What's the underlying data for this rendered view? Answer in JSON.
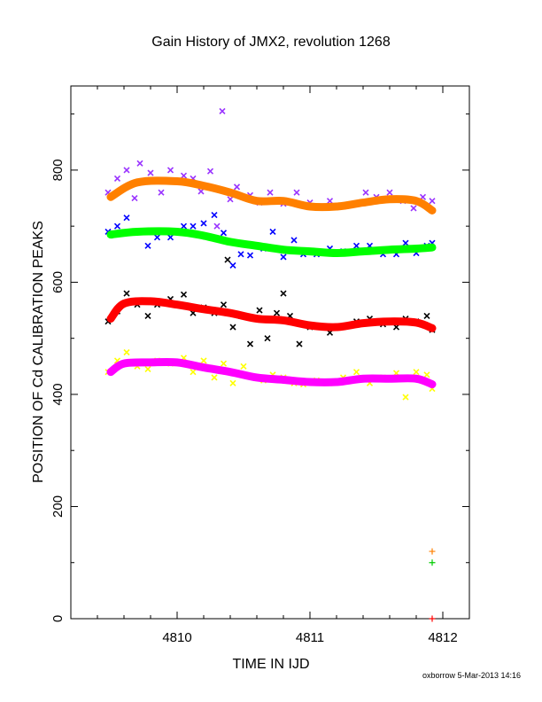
{
  "chart_data": {
    "type": "scatter",
    "title": "Gain History of JMX2, revolution 1268",
    "xlabel": "TIME IN IJD",
    "ylabel": "POSITION OF Cd CALIBRATION PEAKS",
    "xlim": [
      4809.2,
      4812.2
    ],
    "ylim": [
      0,
      950
    ],
    "x_ticks": [
      "4810",
      "4811",
      "4812"
    ],
    "y_ticks": [
      "0",
      "200",
      "400",
      "600",
      "800"
    ],
    "grid": false,
    "footer": "oxborrow  5-Mar-2013 14:16",
    "smooth_series": [
      {
        "color": "#ff8000",
        "x": [
          4809.5,
          4809.7,
          4810.0,
          4810.2,
          4810.4,
          4810.6,
          4810.8,
          4811.0,
          4811.2,
          4811.4,
          4811.6,
          4811.8,
          4811.92
        ],
        "y": [
          752,
          778,
          780,
          772,
          760,
          745,
          745,
          735,
          735,
          742,
          748,
          745,
          728
        ]
      },
      {
        "color": "#00ff00",
        "x": [
          4809.5,
          4809.7,
          4810.0,
          4810.2,
          4810.4,
          4810.6,
          4810.8,
          4811.0,
          4811.2,
          4811.4,
          4811.6,
          4811.8,
          4811.92
        ],
        "y": [
          685,
          690,
          690,
          683,
          672,
          665,
          658,
          655,
          652,
          655,
          658,
          660,
          662
        ]
      },
      {
        "color": "#ff0000",
        "x": [
          4809.5,
          4809.6,
          4809.8,
          4810.0,
          4810.2,
          4810.4,
          4810.6,
          4810.8,
          4811.0,
          4811.2,
          4811.4,
          4811.6,
          4811.8,
          4811.92
        ],
        "y": [
          535,
          562,
          566,
          560,
          552,
          545,
          535,
          532,
          523,
          520,
          527,
          530,
          528,
          518
        ]
      },
      {
        "color": "#ff00ff",
        "x": [
          4809.5,
          4809.6,
          4809.8,
          4810.0,
          4810.2,
          4810.4,
          4810.6,
          4810.8,
          4811.0,
          4811.2,
          4811.4,
          4811.6,
          4811.8,
          4811.92
        ],
        "y": [
          440,
          455,
          457,
          457,
          448,
          440,
          430,
          426,
          422,
          422,
          428,
          428,
          428,
          418
        ]
      }
    ],
    "scatter_series": [
      {
        "color": "#9933ff",
        "x": [
          4809.48,
          4809.55,
          4809.62,
          4809.68,
          4809.72,
          4809.8,
          4809.88,
          4809.95,
          4810.05,
          4810.12,
          4810.18,
          4810.25,
          4810.3,
          4810.34,
          4810.4,
          4810.45,
          4810.55,
          4810.62,
          4810.7,
          4810.8,
          4810.9,
          4811.0,
          4811.08,
          4811.15,
          4811.25,
          4811.35,
          4811.42,
          4811.5,
          4811.6,
          4811.7,
          4811.78,
          4811.85,
          4811.92
        ],
        "y": [
          760,
          785,
          800,
          750,
          812,
          795,
          760,
          800,
          790,
          785,
          762,
          798,
          700,
          905,
          748,
          770,
          755,
          742,
          760,
          740,
          760,
          742,
          735,
          745,
          735,
          740,
          760,
          752,
          760,
          745,
          732,
          752,
          745
        ]
      },
      {
        "color": "#0000ff",
        "x": [
          4809.48,
          4809.55,
          4809.62,
          4809.7,
          4809.78,
          4809.85,
          4809.95,
          4810.05,
          4810.12,
          4810.2,
          4810.28,
          4810.35,
          4810.42,
          4810.48,
          4810.55,
          4810.65,
          4810.72,
          4810.8,
          4810.88,
          4810.95,
          4811.05,
          4811.15,
          4811.25,
          4811.35,
          4811.45,
          4811.55,
          4811.65,
          4811.72,
          4811.8,
          4811.88,
          4811.92
        ],
        "y": [
          690,
          700,
          715,
          690,
          665,
          680,
          680,
          700,
          700,
          705,
          720,
          688,
          630,
          650,
          648,
          660,
          690,
          645,
          675,
          650,
          650,
          660,
          655,
          665,
          665,
          650,
          650,
          670,
          652,
          665,
          670
        ]
      },
      {
        "color": "#000000",
        "x": [
          4809.48,
          4809.55,
          4809.62,
          4809.7,
          4809.78,
          4809.85,
          4809.95,
          4810.05,
          4810.12,
          4810.2,
          4810.28,
          4810.35,
          4810.38,
          4810.42,
          4810.48,
          4810.55,
          4810.62,
          4810.68,
          4810.75,
          4810.8,
          4810.85,
          4810.92,
          4811.0,
          4811.08,
          4811.15,
          4811.25,
          4811.35,
          4811.45,
          4811.55,
          4811.65,
          4811.72,
          4811.8,
          4811.88,
          4811.92
        ],
        "y": [
          530,
          548,
          580,
          560,
          540,
          560,
          570,
          578,
          545,
          555,
          545,
          560,
          640,
          520,
          540,
          490,
          550,
          500,
          545,
          580,
          540,
          490,
          520,
          520,
          510,
          520,
          530,
          535,
          525,
          520,
          535,
          530,
          540,
          515
        ]
      },
      {
        "color": "#ffff00",
        "x": [
          4809.48,
          4809.55,
          4809.62,
          4809.7,
          4809.78,
          4809.85,
          4809.95,
          4810.05,
          4810.12,
          4810.2,
          4810.28,
          4810.35,
          4810.42,
          4810.5,
          4810.58,
          4810.65,
          4810.72,
          4810.8,
          4810.88,
          4810.95,
          4811.05,
          4811.15,
          4811.25,
          4811.35,
          4811.45,
          4811.55,
          4811.65,
          4811.72,
          4811.8,
          4811.88,
          4811.92
        ],
        "y": [
          440,
          460,
          475,
          450,
          445,
          460,
          455,
          465,
          440,
          460,
          430,
          455,
          420,
          450,
          430,
          425,
          435,
          430,
          420,
          418,
          425,
          420,
          430,
          440,
          420,
          430,
          438,
          395,
          440,
          435,
          410
        ]
      }
    ],
    "extra_points": [
      {
        "x": 4811.92,
        "y": 120,
        "color": "#ff8000",
        "marker": "+"
      },
      {
        "x": 4811.92,
        "y": 100,
        "color": "#00cc00",
        "marker": "+"
      },
      {
        "x": 4811.92,
        "y": 0,
        "color": "#ff0000",
        "marker": "+"
      }
    ]
  }
}
